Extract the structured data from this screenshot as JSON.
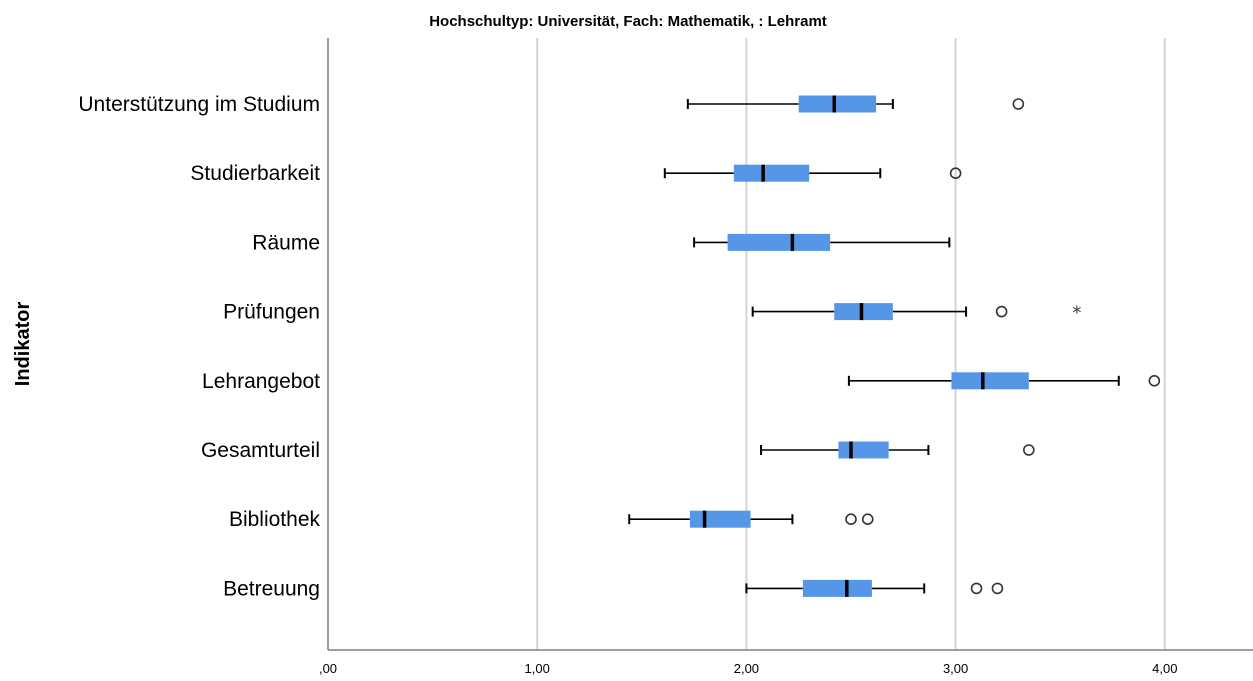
{
  "chart_data": {
    "type": "boxplot",
    "title": "Hochschultyp: Universität, Fach: Mathematik,  : Lehramt",
    "ylabel": "Indikator",
    "xlabel": "",
    "xlim": [
      0,
      4.4
    ],
    "x_ticks": [
      0,
      1,
      2,
      3,
      4
    ],
    "x_tick_labels": [
      ",00",
      "1,00",
      "2,00",
      "3,00",
      "4,00"
    ],
    "grid": "vertical",
    "box_color": "#5596e6",
    "categories": [
      "Unterstützung im Studium",
      "Studierbarkeit",
      "Räume",
      "Prüfungen",
      "Lehrangebot",
      "Gesamturteil",
      "Bibliothek",
      "Betreuung"
    ],
    "boxes": [
      {
        "category": "Unterstützung im Studium",
        "whisker_low": 1.72,
        "q1": 2.25,
        "median": 2.42,
        "q3": 2.62,
        "whisker_high": 2.7,
        "outliers": [
          3.3
        ],
        "extremes": []
      },
      {
        "category": "Studierbarkeit",
        "whisker_low": 1.61,
        "q1": 1.94,
        "median": 2.08,
        "q3": 2.3,
        "whisker_high": 2.64,
        "outliers": [
          3.0
        ],
        "extremes": []
      },
      {
        "category": "Räume",
        "whisker_low": 1.75,
        "q1": 1.91,
        "median": 2.22,
        "q3": 2.4,
        "whisker_high": 2.97,
        "outliers": [],
        "extremes": []
      },
      {
        "category": "Prüfungen",
        "whisker_low": 2.03,
        "q1": 2.42,
        "median": 2.55,
        "q3": 2.7,
        "whisker_high": 3.05,
        "outliers": [
          3.22
        ],
        "extremes": [
          3.58
        ]
      },
      {
        "category": "Lehrangebot",
        "whisker_low": 2.49,
        "q1": 2.98,
        "median": 3.13,
        "q3": 3.35,
        "whisker_high": 3.78,
        "outliers": [
          3.95
        ],
        "extremes": []
      },
      {
        "category": "Gesamturteil",
        "whisker_low": 2.07,
        "q1": 2.44,
        "median": 2.5,
        "q3": 2.68,
        "whisker_high": 2.87,
        "outliers": [
          3.35
        ],
        "extremes": []
      },
      {
        "category": "Bibliothek",
        "whisker_low": 1.44,
        "q1": 1.73,
        "median": 1.8,
        "q3": 2.02,
        "whisker_high": 2.22,
        "outliers": [
          2.5,
          2.58
        ],
        "extremes": []
      },
      {
        "category": "Betreuung",
        "whisker_low": 2.0,
        "q1": 2.27,
        "median": 2.48,
        "q3": 2.6,
        "whisker_high": 2.85,
        "outliers": [
          3.1,
          3.2
        ],
        "extremes": []
      }
    ]
  }
}
